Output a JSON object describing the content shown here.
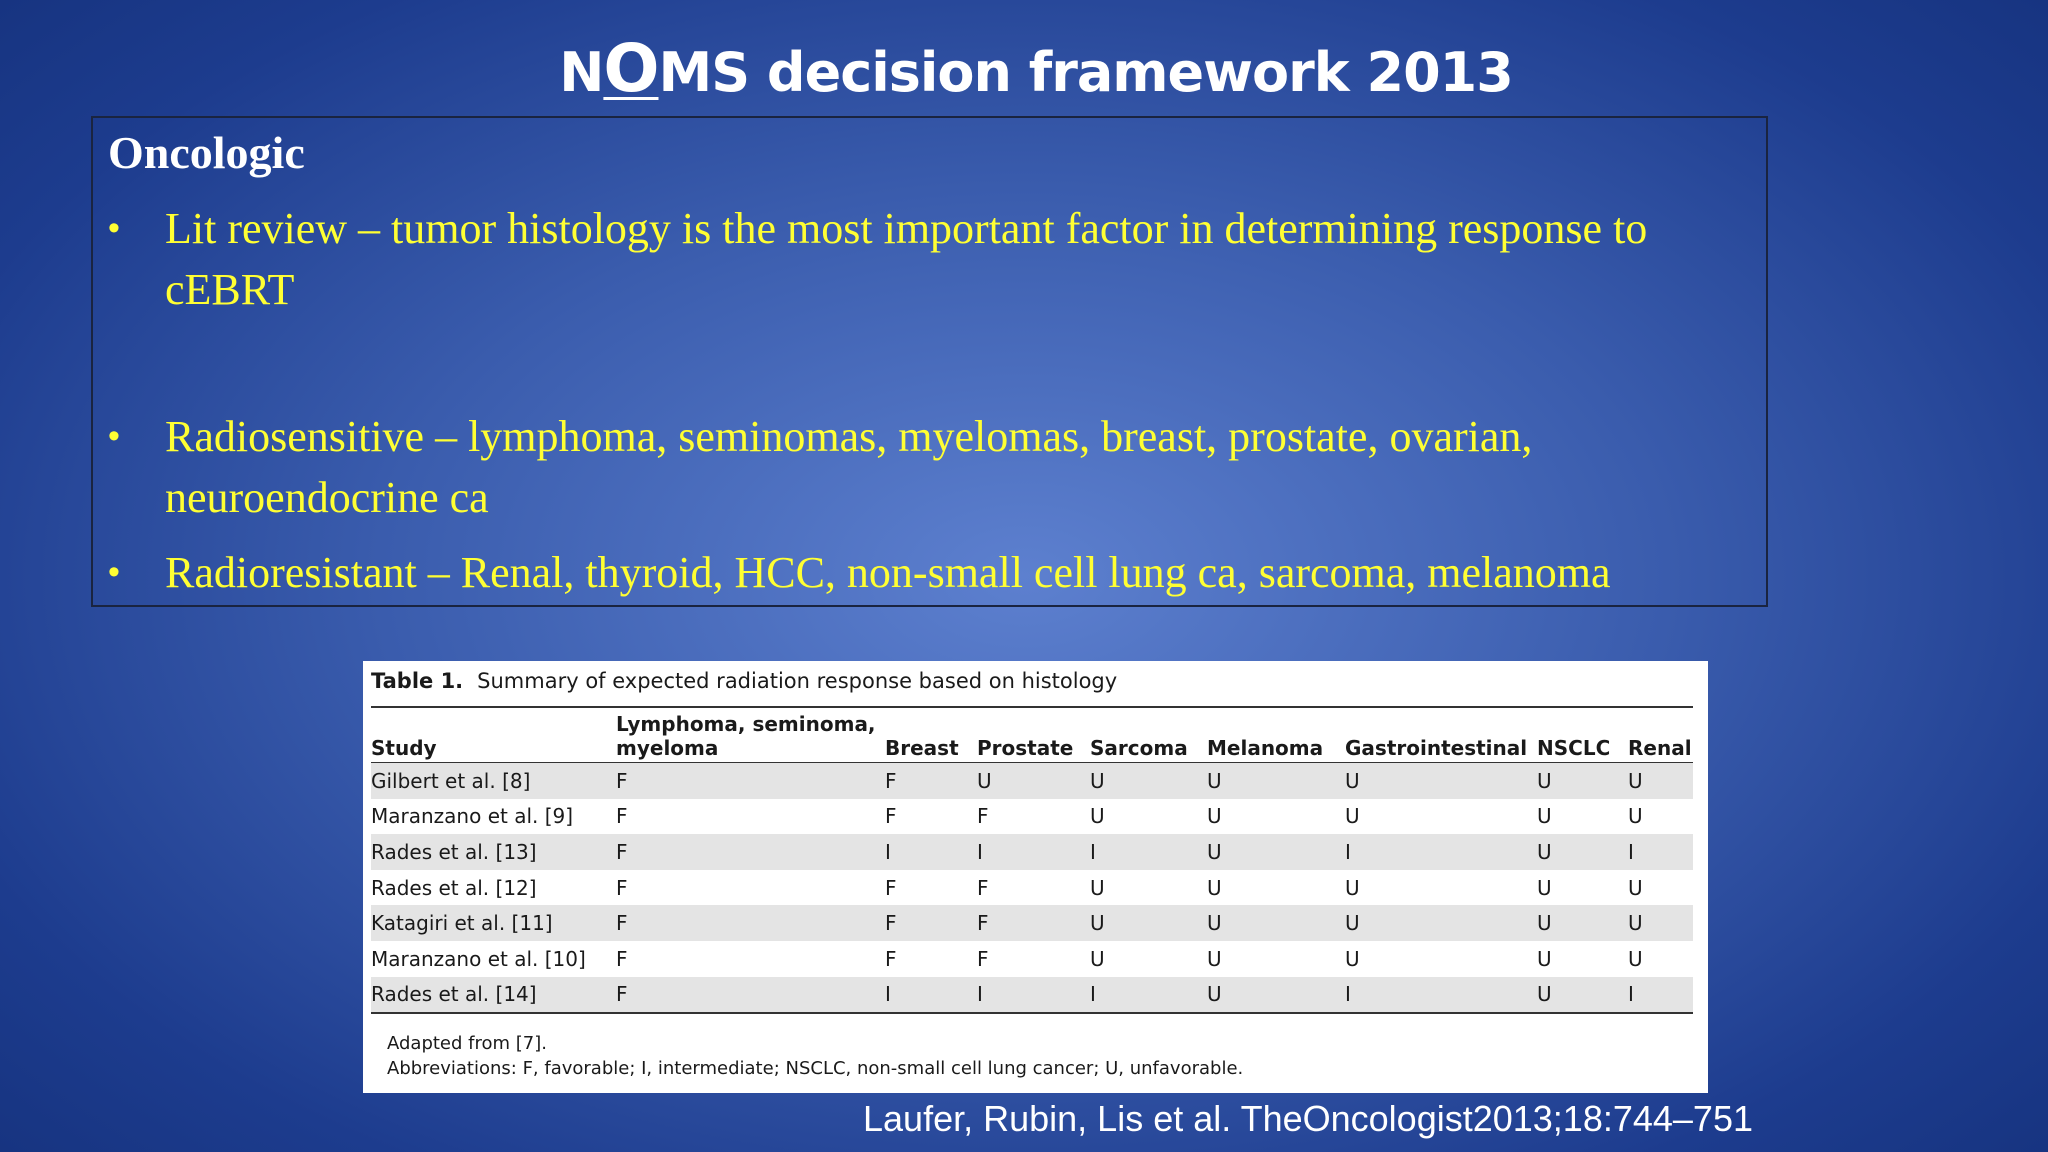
{
  "header": {
    "title_parts": [
      "N",
      "O",
      "MS decision framework 2013"
    ]
  },
  "box": {
    "heading": "Oncologic",
    "bullets": [
      "Lit review – tumor histology is the most important factor in determining response to cEBRT",
      "Radiosensitive – lymphoma, seminomas, myelomas, breast, prostate, ovarian, neuroendocrine ca",
      "Radioresistant – Renal, thyroid, HCC, non-small cell lung ca, sarcoma, melanoma"
    ]
  },
  "table": {
    "caption_label": "Table 1.",
    "caption": "Summary of expected radiation response based on histology",
    "columns": [
      "Study",
      "Lymphoma, seminoma, myeloma",
      "Breast",
      "Prostate",
      "Sarcoma",
      "Melanoma",
      "Gastrointestinal",
      "NSCLC",
      "Renal"
    ],
    "rows": [
      [
        "Gilbert et al. [8]",
        "F",
        "F",
        "U",
        "U",
        "U",
        "U",
        "U",
        "U"
      ],
      [
        "Maranzano et al. [9]",
        "F",
        "F",
        "F",
        "U",
        "U",
        "U",
        "U",
        "U"
      ],
      [
        "Rades et al. [13]",
        "F",
        "I",
        "I",
        "I",
        "U",
        "I",
        "U",
        "I"
      ],
      [
        "Rades et al. [12]",
        "F",
        "F",
        "F",
        "U",
        "U",
        "U",
        "U",
        "U"
      ],
      [
        "Katagiri et al. [11]",
        "F",
        "F",
        "F",
        "U",
        "U",
        "U",
        "U",
        "U"
      ],
      [
        "Maranzano et al. [10]",
        "F",
        "F",
        "F",
        "U",
        "U",
        "U",
        "U",
        "U"
      ],
      [
        "Rades et al. [14]",
        "F",
        "I",
        "I",
        "I",
        "U",
        "I",
        "U",
        "I"
      ]
    ],
    "footnotes": [
      "Adapted from [7].",
      "Abbreviations: F, favorable; I, intermediate; NSCLC, non-small cell lung cancer; U, unfavorable."
    ]
  },
  "citation": "Laufer, Rubin, Lis et al. TheOncologist2013;18:744–751"
}
